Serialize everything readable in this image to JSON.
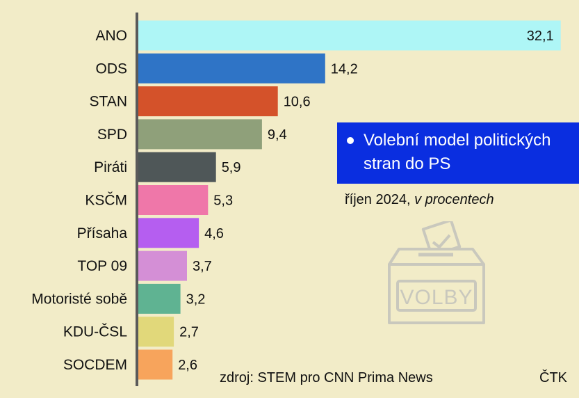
{
  "chart_data": {
    "type": "bar",
    "orientation": "horizontal",
    "title": "Volební model politických stran do PS",
    "subtitle_date": "říjen 2024,",
    "subtitle_unit": "v procentech",
    "categories": [
      "ANO",
      "ODS",
      "STAN",
      "SPD",
      "Piráti",
      "KSČM",
      "Přísaha",
      "TOP 09",
      "Motoristé sobě",
      "KDU-ČSL",
      "SOCDEM"
    ],
    "values": [
      32.1,
      14.2,
      10.6,
      9.4,
      5.9,
      5.3,
      4.6,
      3.7,
      3.2,
      2.7,
      2.6
    ],
    "value_labels": [
      "32,1",
      "14,2",
      "10,6",
      "9,4",
      "5,9",
      "5,3",
      "4,6",
      "3,7",
      "3,2",
      "2,7",
      "2,6"
    ],
    "colors": [
      "#aef6f6",
      "#2f74c6",
      "#d4522a",
      "#8fa07a",
      "#4f5758",
      "#ef77a9",
      "#b55ef0",
      "#d48fd6",
      "#5fb392",
      "#e1d87a",
      "#f7a45c"
    ],
    "axis_color": "#5a5a5a",
    "grid": false
  },
  "labels": {
    "source": "zdroj: STEM pro CNN Prima News",
    "agency": "ČTK",
    "ballot_box": "VOLBY"
  }
}
